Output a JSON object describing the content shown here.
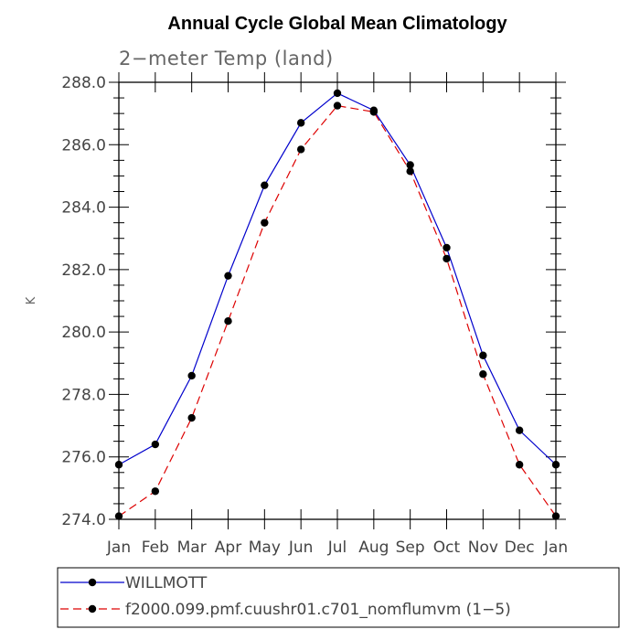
{
  "chart_data": {
    "type": "line",
    "title": "Annual Cycle Global Mean Climatology",
    "subtitle": "2−meter Temp (land)",
    "xlabel": "",
    "ylabel": "K",
    "categories": [
      "Jan",
      "Feb",
      "Mar",
      "Apr",
      "May",
      "Jun",
      "Jul",
      "Aug",
      "Sep",
      "Oct",
      "Nov",
      "Dec",
      "Jan"
    ],
    "ylim": [
      274.0,
      288.0
    ],
    "yticks": [
      "274.0",
      "276.0",
      "278.0",
      "280.0",
      "282.0",
      "284.0",
      "286.0",
      "288.0"
    ],
    "grid": false,
    "legend_position": "bottom",
    "series": [
      {
        "name": "WILLMOTT",
        "color": "#0000cc",
        "dash": "solid",
        "values": [
          275.75,
          276.4,
          278.6,
          281.8,
          284.7,
          286.7,
          287.65,
          287.1,
          285.35,
          282.7,
          279.25,
          276.85,
          275.75
        ]
      },
      {
        "name": "f2000.099.pmf.cuushr01.c701_nomflumvm (1−5)",
        "color": "#dd0000",
        "dash": "dashed",
        "values": [
          274.1,
          274.9,
          277.25,
          280.35,
          283.5,
          285.85,
          287.25,
          287.05,
          285.15,
          282.35,
          278.65,
          275.75,
          274.1
        ]
      }
    ]
  }
}
